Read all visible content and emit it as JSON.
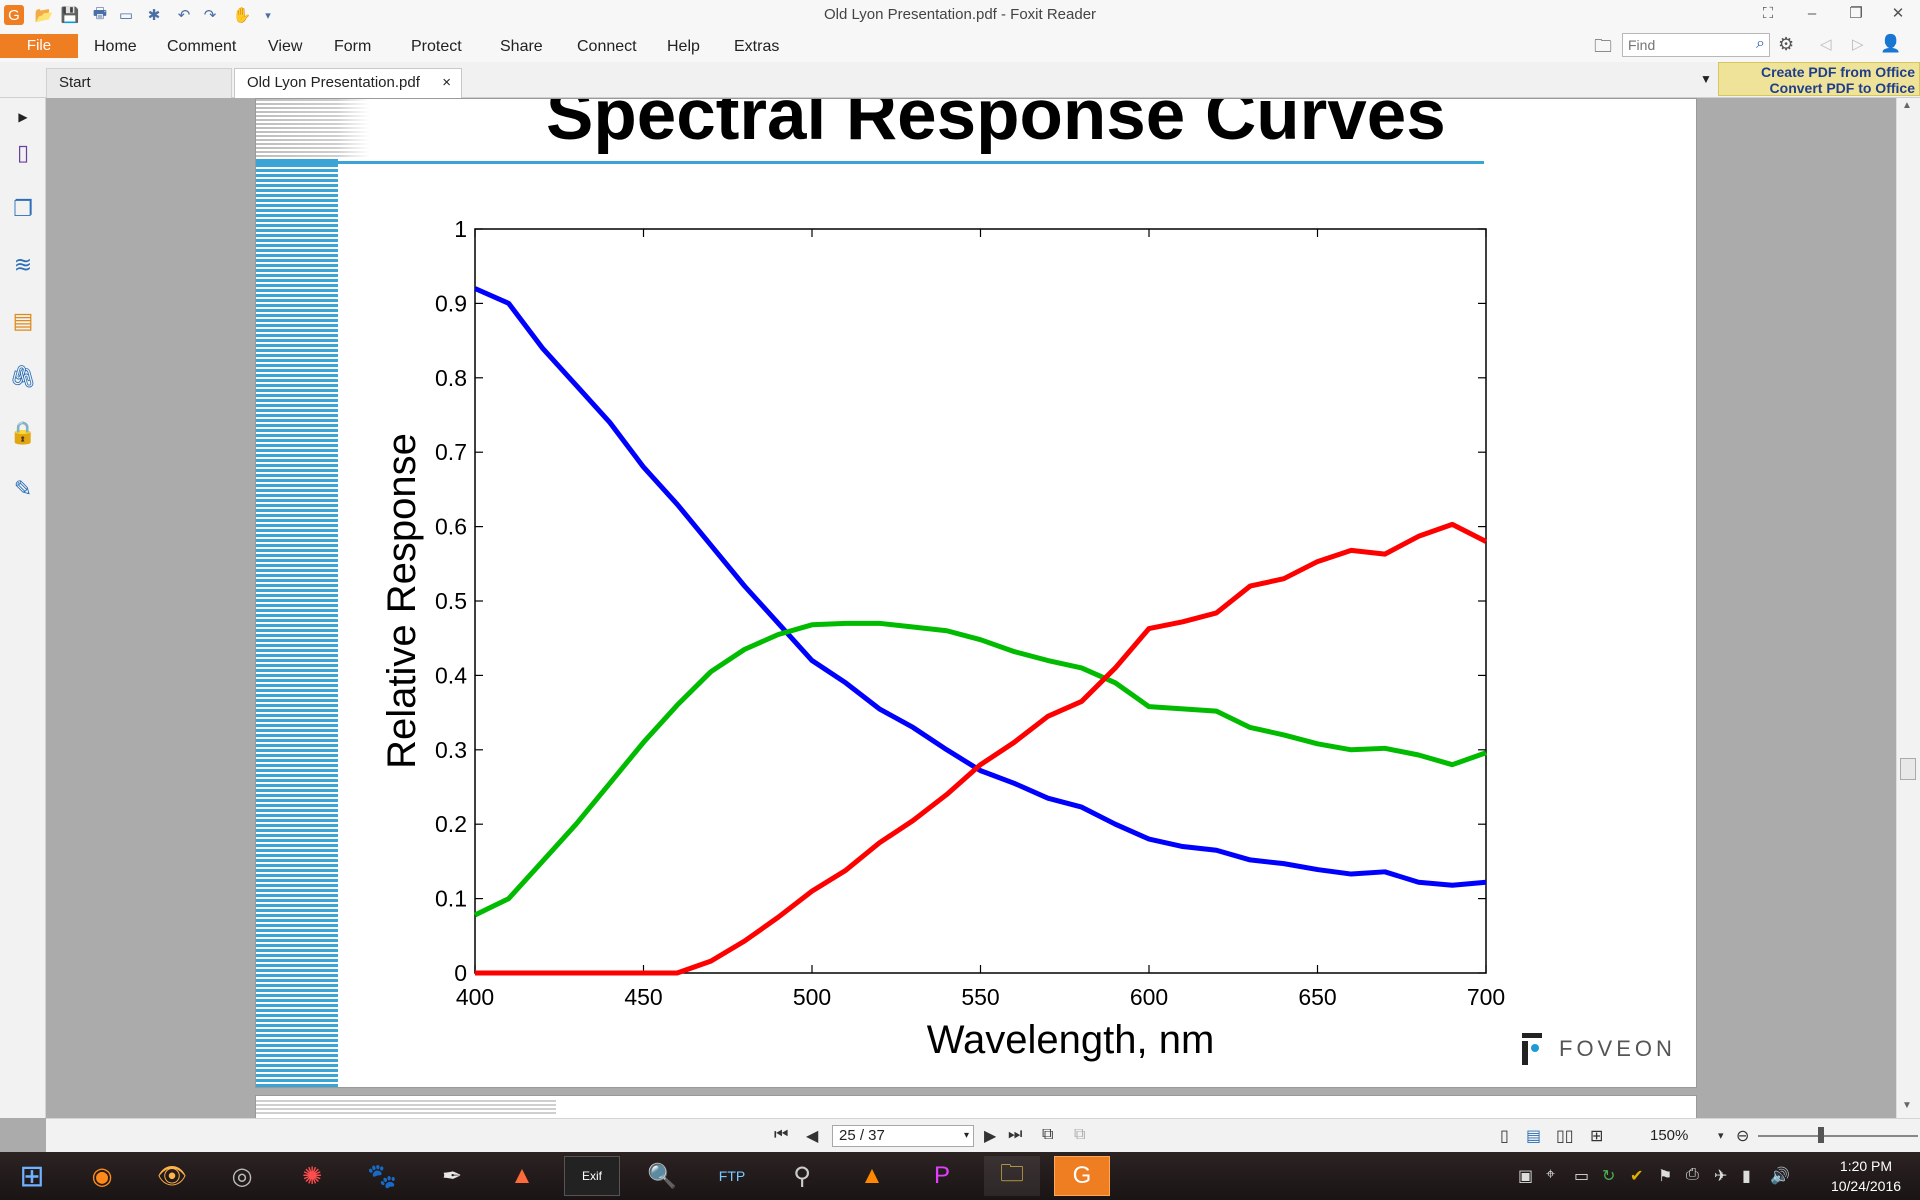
{
  "window": {
    "title": "Old Lyon Presentation.pdf - Foxit Reader"
  },
  "ribbon": {
    "file": "File",
    "tabs": [
      "Home",
      "Comment",
      "View",
      "Form",
      "Protect",
      "Share",
      "Connect",
      "Help",
      "Extras"
    ],
    "find_placeholder": "Find"
  },
  "doc_tabs": {
    "start": "Start",
    "current": "Old Lyon Presentation.pdf",
    "close": "×"
  },
  "promo": {
    "line1": "Create PDF from Office",
    "line2": "Convert PDF to Office"
  },
  "slide": {
    "title": "Spectral Response Curves",
    "logo_text": "FOVEON"
  },
  "chart_data": {
    "type": "line",
    "title": "",
    "xlabel": "Wavelength, nm",
    "ylabel": "Relative Response",
    "xlim": [
      400,
      700
    ],
    "ylim": [
      0,
      1
    ],
    "xticks": [
      400,
      450,
      500,
      550,
      600,
      650,
      700
    ],
    "yticks": [
      0,
      0.1,
      0.2,
      0.3,
      0.4,
      0.5,
      0.6,
      0.7,
      0.8,
      0.9,
      1
    ],
    "grid": false,
    "colors": {
      "blue": "#0000ff",
      "green": "#00bb00",
      "red": "#ff0000"
    },
    "x": [
      400,
      410,
      420,
      430,
      440,
      450,
      460,
      470,
      480,
      490,
      500,
      510,
      520,
      530,
      540,
      550,
      560,
      570,
      580,
      590,
      600,
      610,
      620,
      630,
      640,
      650,
      660,
      670,
      680,
      690,
      700
    ],
    "series": [
      {
        "color": "blue",
        "values": [
          0.92,
          0.9,
          0.84,
          0.79,
          0.74,
          0.68,
          0.63,
          0.575,
          0.52,
          0.47,
          0.42,
          0.39,
          0.355,
          0.33,
          0.3,
          0.272,
          0.255,
          0.235,
          0.223,
          0.2,
          0.18,
          0.17,
          0.165,
          0.152,
          0.147,
          0.139,
          0.133,
          0.136,
          0.122,
          0.118,
          0.122
        ]
      },
      {
        "color": "green",
        "values": [
          0.078,
          0.1,
          0.15,
          0.2,
          0.255,
          0.31,
          0.36,
          0.405,
          0.435,
          0.455,
          0.468,
          0.47,
          0.47,
          0.465,
          0.46,
          0.448,
          0.432,
          0.42,
          0.41,
          0.39,
          0.358,
          0.355,
          0.352,
          0.33,
          0.32,
          0.308,
          0.3,
          0.302,
          0.293,
          0.28,
          0.296
        ]
      },
      {
        "color": "red",
        "values": [
          0,
          0,
          0,
          0,
          0,
          0,
          0,
          0.016,
          0.043,
          0.075,
          0.11,
          0.138,
          0.175,
          0.205,
          0.24,
          0.28,
          0.31,
          0.345,
          0.365,
          0.41,
          0.463,
          0.472,
          0.484,
          0.52,
          0.53,
          0.553,
          0.568,
          0.563,
          0.587,
          0.603,
          0.58
        ]
      }
    ]
  },
  "navigation": {
    "page_display": "25 / 37",
    "zoom": "150%"
  },
  "taskbar": {
    "time": "1:20 PM",
    "date": "10/24/2016"
  }
}
